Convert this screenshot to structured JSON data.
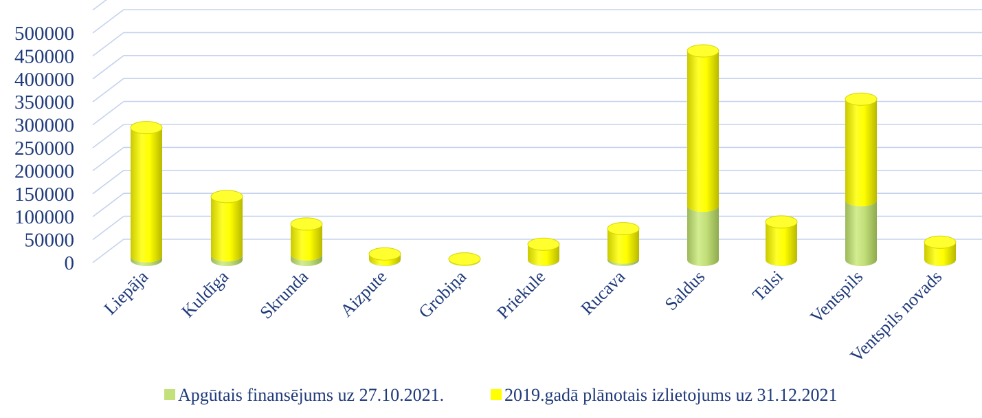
{
  "chart_data": {
    "type": "bar",
    "stacked": true,
    "style": "3d-cylinder",
    "categories": [
      "Liepāja",
      "Kuldīga",
      "Skrunda",
      "Aizpute",
      "Grobiņa",
      "Priekule",
      "Rucava",
      "Saldus",
      "Talsi",
      "Ventspils",
      "Ventspils novads"
    ],
    "series": [
      {
        "name": "Apgūtais finansējums uz 27.10.2021.",
        "color": "#c3e07a",
        "values": [
          8000,
          10000,
          12000,
          1000,
          500,
          1000,
          5000,
          118000,
          500,
          130000,
          500
        ]
      },
      {
        "name": "2019.gadā plānotais izlietojums uz 31.12.2021",
        "color": "#ffff00",
        "values": [
          280000,
          128000,
          66000,
          12000,
          1500,
          33000,
          63000,
          337000,
          82000,
          220000,
          38000
        ]
      }
    ],
    "y_ticks": [
      "0",
      "50000",
      "100000",
      "150000",
      "200000",
      "250000",
      "300000",
      "350000",
      "400000",
      "450000",
      "500000"
    ],
    "ylim": [
      0,
      500000
    ],
    "grid": true,
    "legend_position": "bottom"
  }
}
